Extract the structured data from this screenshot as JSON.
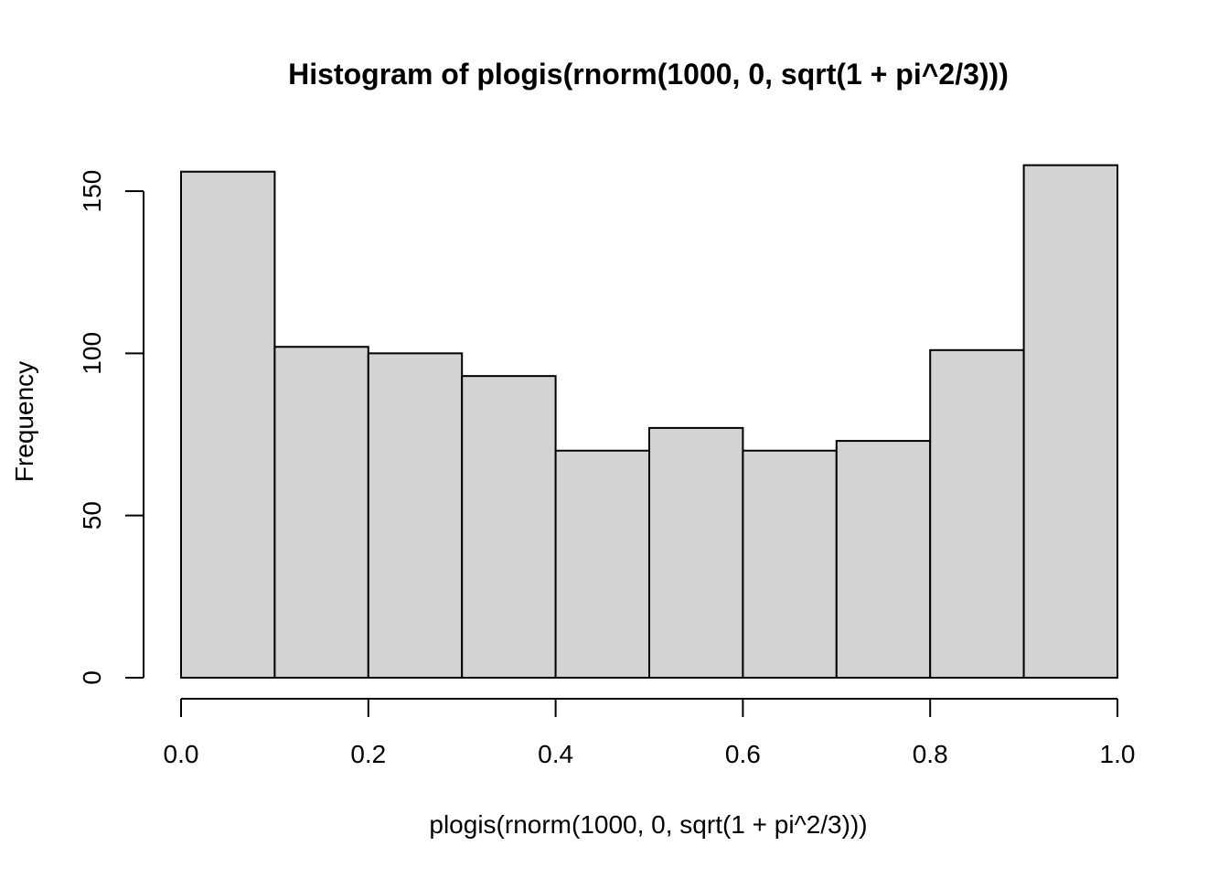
{
  "chart_data": {
    "type": "bar",
    "title": "Histogram of plogis(rnorm(1000, 0, sqrt(1 + pi^2/3)))",
    "xlabel": "plogis(rnorm(1000, 0, sqrt(1 + pi^2/3)))",
    "ylabel": "Frequency",
    "bins": [
      {
        "from": 0.0,
        "to": 0.1,
        "value": 156
      },
      {
        "from": 0.1,
        "to": 0.2,
        "value": 102
      },
      {
        "from": 0.2,
        "to": 0.3,
        "value": 100
      },
      {
        "from": 0.3,
        "to": 0.4,
        "value": 93
      },
      {
        "from": 0.4,
        "to": 0.5,
        "value": 70
      },
      {
        "from": 0.5,
        "to": 0.6,
        "value": 77
      },
      {
        "from": 0.6,
        "to": 0.7,
        "value": 70
      },
      {
        "from": 0.7,
        "to": 0.8,
        "value": 73
      },
      {
        "from": 0.8,
        "to": 0.9,
        "value": 101
      },
      {
        "from": 0.9,
        "to": 1.0,
        "value": 158
      }
    ],
    "xlim": [
      0.0,
      1.0
    ],
    "ylim": [
      0,
      150
    ],
    "x_ticks": [
      0.0,
      0.2,
      0.4,
      0.6,
      0.8,
      1.0
    ],
    "x_tick_labels": [
      "0.0",
      "0.2",
      "0.4",
      "0.6",
      "0.8",
      "1.0"
    ],
    "y_ticks": [
      0,
      50,
      100,
      150
    ],
    "y_tick_labels": [
      "0",
      "50",
      "100",
      "150"
    ],
    "grid": false,
    "bar_fill": "#d3d3d3",
    "bar_stroke": "#000000"
  }
}
